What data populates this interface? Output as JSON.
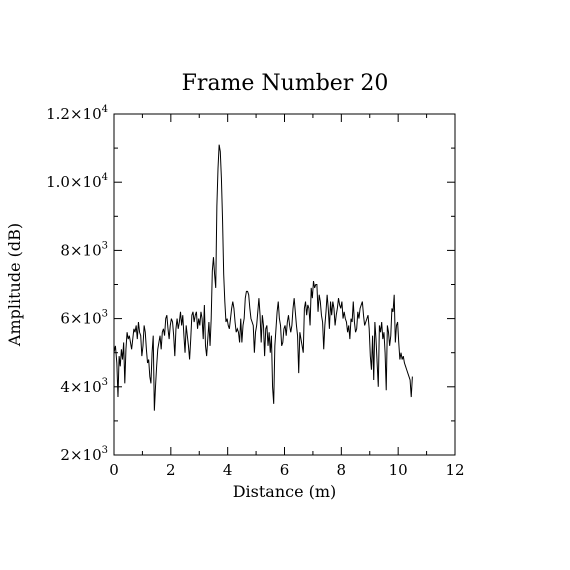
{
  "chart_data": {
    "type": "line",
    "title": "Frame Number 20",
    "xlabel": "Distance (m)",
    "ylabel": "Amplitude (dB)",
    "xlim": [
      0,
      12
    ],
    "ylim": [
      2000,
      12000
    ],
    "grid": false,
    "x_ticks": [
      {
        "value": 0,
        "label": "0"
      },
      {
        "value": 2,
        "label": "2"
      },
      {
        "value": 4,
        "label": "4"
      },
      {
        "value": 6,
        "label": "6"
      },
      {
        "value": 8,
        "label": "8"
      },
      {
        "value": 10,
        "label": "10"
      },
      {
        "value": 12,
        "label": "12"
      }
    ],
    "y_ticks": [
      {
        "value": 2000,
        "mantissa": "2",
        "exp": "3"
      },
      {
        "value": 4000,
        "mantissa": "4",
        "exp": "3"
      },
      {
        "value": 6000,
        "mantissa": "6",
        "exp": "3"
      },
      {
        "value": 8000,
        "mantissa": "8",
        "exp": "3"
      },
      {
        "value": 10000,
        "mantissa": "1.0",
        "exp": "4"
      },
      {
        "value": 12000,
        "mantissa": "1.2",
        "exp": "4"
      }
    ],
    "x_minor_step": 1,
    "y_minor_step": 1000,
    "series": [
      {
        "color": "#000000",
        "points": [
          [
            0.0,
            5000
          ],
          [
            0.05,
            5200
          ],
          [
            0.1,
            4700
          ],
          [
            0.14,
            3700
          ],
          [
            0.18,
            4900
          ],
          [
            0.22,
            4600
          ],
          [
            0.26,
            5100
          ],
          [
            0.3,
            4800
          ],
          [
            0.34,
            5300
          ],
          [
            0.38,
            4100
          ],
          [
            0.42,
            5100
          ],
          [
            0.46,
            5600
          ],
          [
            0.5,
            5400
          ],
          [
            0.54,
            5500
          ],
          [
            0.58,
            5300
          ],
          [
            0.62,
            5100
          ],
          [
            0.66,
            5400
          ],
          [
            0.7,
            5700
          ],
          [
            0.74,
            5600
          ],
          [
            0.78,
            5800
          ],
          [
            0.82,
            5400
          ],
          [
            0.86,
            5900
          ],
          [
            0.9,
            5600
          ],
          [
            0.94,
            5500
          ],
          [
            0.98,
            4900
          ],
          [
            1.02,
            5200
          ],
          [
            1.06,
            5800
          ],
          [
            1.1,
            5600
          ],
          [
            1.14,
            5100
          ],
          [
            1.18,
            4700
          ],
          [
            1.22,
            4800
          ],
          [
            1.26,
            4300
          ],
          [
            1.3,
            4100
          ],
          [
            1.34,
            5000
          ],
          [
            1.38,
            5500
          ],
          [
            1.42,
            3300
          ],
          [
            1.46,
            4000
          ],
          [
            1.5,
            4600
          ],
          [
            1.54,
            5100
          ],
          [
            1.58,
            5300
          ],
          [
            1.62,
            5500
          ],
          [
            1.66,
            5100
          ],
          [
            1.7,
            5600
          ],
          [
            1.74,
            5700
          ],
          [
            1.78,
            5500
          ],
          [
            1.82,
            6000
          ],
          [
            1.86,
            6100
          ],
          [
            1.9,
            5700
          ],
          [
            1.94,
            5400
          ],
          [
            1.98,
            5800
          ],
          [
            2.02,
            6000
          ],
          [
            2.06,
            5900
          ],
          [
            2.1,
            5500
          ],
          [
            2.14,
            4900
          ],
          [
            2.18,
            5700
          ],
          [
            2.22,
            6000
          ],
          [
            2.26,
            5700
          ],
          [
            2.3,
            5900
          ],
          [
            2.34,
            6200
          ],
          [
            2.38,
            5800
          ],
          [
            2.42,
            6100
          ],
          [
            2.46,
            5500
          ],
          [
            2.5,
            5000
          ],
          [
            2.54,
            5800
          ],
          [
            2.58,
            5500
          ],
          [
            2.62,
            5200
          ],
          [
            2.66,
            4800
          ],
          [
            2.7,
            5400
          ],
          [
            2.74,
            6100
          ],
          [
            2.78,
            6200
          ],
          [
            2.82,
            5900
          ],
          [
            2.86,
            6100
          ],
          [
            2.9,
            6200
          ],
          [
            2.94,
            5700
          ],
          [
            2.98,
            6000
          ],
          [
            3.02,
            5800
          ],
          [
            3.06,
            6200
          ],
          [
            3.1,
            6000
          ],
          [
            3.14,
            5400
          ],
          [
            3.18,
            6400
          ],
          [
            3.22,
            5200
          ],
          [
            3.26,
            4900
          ],
          [
            3.3,
            5400
          ],
          [
            3.34,
            5900
          ],
          [
            3.38,
            5200
          ],
          [
            3.42,
            6000
          ],
          [
            3.46,
            7400
          ],
          [
            3.5,
            7800
          ],
          [
            3.54,
            7300
          ],
          [
            3.58,
            6900
          ],
          [
            3.62,
            9300
          ],
          [
            3.66,
            10400
          ],
          [
            3.7,
            11100
          ],
          [
            3.74,
            10900
          ],
          [
            3.78,
            10100
          ],
          [
            3.82,
            8900
          ],
          [
            3.86,
            7300
          ],
          [
            3.9,
            6500
          ],
          [
            3.94,
            5900
          ],
          [
            3.98,
            6000
          ],
          [
            4.02,
            5800
          ],
          [
            4.06,
            5700
          ],
          [
            4.1,
            6000
          ],
          [
            4.14,
            6300
          ],
          [
            4.18,
            6500
          ],
          [
            4.22,
            6300
          ],
          [
            4.26,
            5900
          ],
          [
            4.3,
            5600
          ],
          [
            4.34,
            5700
          ],
          [
            4.38,
            5600
          ],
          [
            4.42,
            5300
          ],
          [
            4.46,
            6000
          ],
          [
            4.5,
            5300
          ],
          [
            4.54,
            5800
          ],
          [
            4.58,
            6000
          ],
          [
            4.62,
            6600
          ],
          [
            4.66,
            6800
          ],
          [
            4.7,
            6800
          ],
          [
            4.74,
            6700
          ],
          [
            4.78,
            6300
          ],
          [
            4.82,
            6000
          ],
          [
            4.86,
            5900
          ],
          [
            4.9,
            5800
          ],
          [
            4.94,
            5000
          ],
          [
            4.98,
            5600
          ],
          [
            5.02,
            5800
          ],
          [
            5.06,
            6200
          ],
          [
            5.1,
            6600
          ],
          [
            5.14,
            6100
          ],
          [
            5.18,
            5300
          ],
          [
            5.22,
            6100
          ],
          [
            5.26,
            5800
          ],
          [
            5.3,
            4900
          ],
          [
            5.34,
            5700
          ],
          [
            5.38,
            5800
          ],
          [
            5.42,
            5200
          ],
          [
            5.46,
            5600
          ],
          [
            5.5,
            5000
          ],
          [
            5.54,
            5500
          ],
          [
            5.58,
            4000
          ],
          [
            5.62,
            3500
          ],
          [
            5.66,
            5200
          ],
          [
            5.7,
            5700
          ],
          [
            5.74,
            6200
          ],
          [
            5.78,
            6500
          ],
          [
            5.82,
            6000
          ],
          [
            5.86,
            5800
          ],
          [
            5.9,
            5200
          ],
          [
            5.94,
            5300
          ],
          [
            5.98,
            5700
          ],
          [
            6.02,
            5800
          ],
          [
            6.06,
            5500
          ],
          [
            6.1,
            5900
          ],
          [
            6.14,
            6100
          ],
          [
            6.18,
            5800
          ],
          [
            6.22,
            5600
          ],
          [
            6.26,
            5800
          ],
          [
            6.3,
            6300
          ],
          [
            6.34,
            6600
          ],
          [
            6.38,
            6200
          ],
          [
            6.42,
            5800
          ],
          [
            6.46,
            5500
          ],
          [
            6.5,
            4400
          ],
          [
            6.54,
            5600
          ],
          [
            6.58,
            5400
          ],
          [
            6.62,
            5200
          ],
          [
            6.66,
            5000
          ],
          [
            6.7,
            6300
          ],
          [
            6.74,
            6500
          ],
          [
            6.78,
            6100
          ],
          [
            6.82,
            6400
          ],
          [
            6.86,
            6300
          ],
          [
            6.9,
            5800
          ],
          [
            6.94,
            6900
          ],
          [
            6.98,
            6600
          ],
          [
            7.02,
            7100
          ],
          [
            7.06,
            6900
          ],
          [
            7.1,
            7000
          ],
          [
            7.14,
            7000
          ],
          [
            7.18,
            6200
          ],
          [
            7.22,
            6700
          ],
          [
            7.26,
            6500
          ],
          [
            7.3,
            6100
          ],
          [
            7.34,
            5900
          ],
          [
            7.38,
            5100
          ],
          [
            7.42,
            5800
          ],
          [
            7.46,
            6200
          ],
          [
            7.5,
            6700
          ],
          [
            7.54,
            6300
          ],
          [
            7.58,
            5700
          ],
          [
            7.62,
            6500
          ],
          [
            7.66,
            6100
          ],
          [
            7.7,
            6500
          ],
          [
            7.74,
            6300
          ],
          [
            7.78,
            5800
          ],
          [
            7.82,
            6100
          ],
          [
            7.86,
            6300
          ],
          [
            7.9,
            6600
          ],
          [
            7.94,
            6400
          ],
          [
            7.98,
            6300
          ],
          [
            8.02,
            6500
          ],
          [
            8.06,
            6000
          ],
          [
            8.1,
            6200
          ],
          [
            8.14,
            6000
          ],
          [
            8.18,
            5900
          ],
          [
            8.22,
            5600
          ],
          [
            8.26,
            5800
          ],
          [
            8.3,
            5400
          ],
          [
            8.34,
            6000
          ],
          [
            8.38,
            5900
          ],
          [
            8.42,
            6500
          ],
          [
            8.46,
            5900
          ],
          [
            8.5,
            5600
          ],
          [
            8.54,
            5700
          ],
          [
            8.58,
            6200
          ],
          [
            8.62,
            6000
          ],
          [
            8.66,
            6300
          ],
          [
            8.7,
            6400
          ],
          [
            8.74,
            6500
          ],
          [
            8.78,
            6100
          ],
          [
            8.82,
            5800
          ],
          [
            8.86,
            5900
          ],
          [
            8.9,
            6000
          ],
          [
            8.94,
            6100
          ],
          [
            8.98,
            5700
          ],
          [
            9.02,
            4900
          ],
          [
            9.06,
            4500
          ],
          [
            9.1,
            5500
          ],
          [
            9.14,
            4200
          ],
          [
            9.18,
            5900
          ],
          [
            9.22,
            5400
          ],
          [
            9.26,
            4700
          ],
          [
            9.3,
            4000
          ],
          [
            9.34,
            5800
          ],
          [
            9.38,
            5600
          ],
          [
            9.42,
            5900
          ],
          [
            9.46,
            5400
          ],
          [
            9.5,
            5600
          ],
          [
            9.54,
            5000
          ],
          [
            9.58,
            3900
          ],
          [
            9.62,
            5800
          ],
          [
            9.66,
            5600
          ],
          [
            9.7,
            5200
          ],
          [
            9.74,
            5500
          ],
          [
            9.78,
            6300
          ],
          [
            9.82,
            6200
          ],
          [
            9.86,
            6700
          ],
          [
            9.9,
            5300
          ],
          [
            9.94,
            5800
          ],
          [
            9.98,
            5900
          ],
          [
            10.02,
            5300
          ],
          [
            10.06,
            4800
          ],
          [
            10.1,
            5000
          ],
          [
            10.14,
            4800
          ],
          [
            10.18,
            4900
          ],
          [
            10.22,
            4700
          ],
          [
            10.26,
            4600
          ],
          [
            10.3,
            4500
          ],
          [
            10.34,
            4400
          ],
          [
            10.38,
            4300
          ],
          [
            10.42,
            4200
          ],
          [
            10.46,
            3700
          ],
          [
            10.5,
            4300
          ]
        ]
      }
    ]
  }
}
